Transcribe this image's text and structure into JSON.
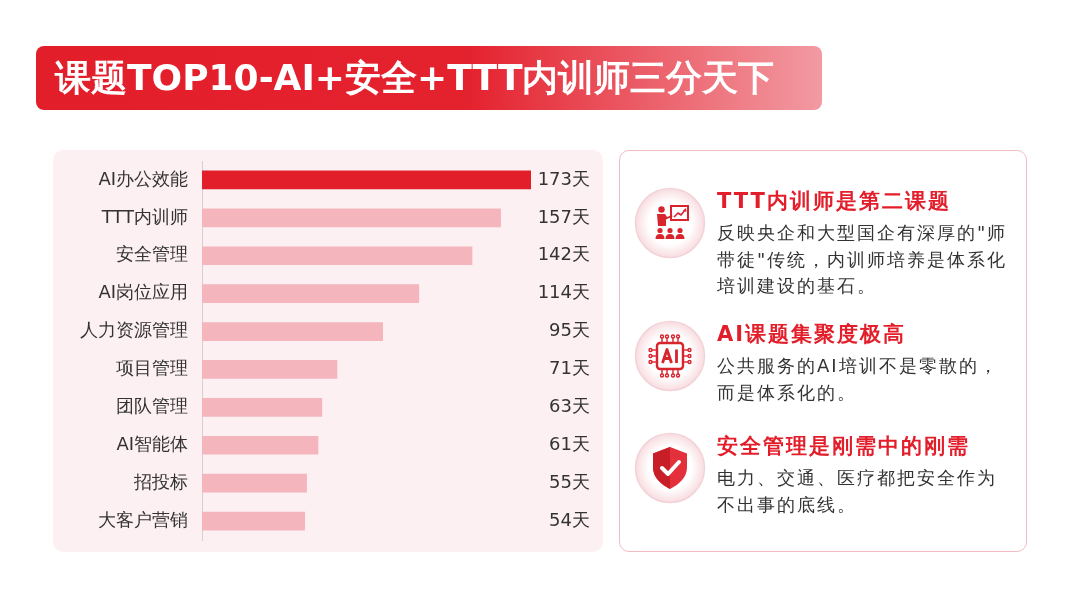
{
  "chart_data": [
    {
      "type": "bar",
      "title": "课题TOP10-AI+安全+TTT内训师三分天下",
      "orientation": "horizontal",
      "categories": [
        "AI办公效能",
        "TTT内训师",
        "安全管理",
        "AI岗位应用",
        "人力资源管理",
        "项目管理",
        "团队管理",
        "AI智能体",
        "招投标",
        "大客户营销"
      ],
      "values": [
        173,
        157,
        142,
        114,
        95,
        71,
        63,
        61,
        55,
        54
      ],
      "colors": [
        "#e31e2b",
        "#f4b5bd",
        "#f4b5bd",
        "#f4b5bd",
        "#f4b5bd",
        "#f4b5bd",
        "#f4b5bd",
        "#f4b5bd",
        "#f4b5bd",
        "#f4b5bd"
      ],
      "value_labels": [
        "173天",
        "157天",
        "142天",
        "114天",
        "95天",
        "71天",
        "63天",
        "61天",
        "55天",
        "54天"
      ]
    },
    {
      "type": "other",
      "annotations": [
        "TTT内训师是第二课题",
        "反映央企和大型国企有深厚的\"师带徒\"传统，内训师培养是体系化培训建设的基石。",
        "AI课题集聚度极高",
        "公共服务的AI培训不是零散的，而是体系化的。",
        "安全管理是刚需中的刚需",
        "电力、交通、医疗都把安全作为不出事的底线。"
      ]
    }
  ]
}
